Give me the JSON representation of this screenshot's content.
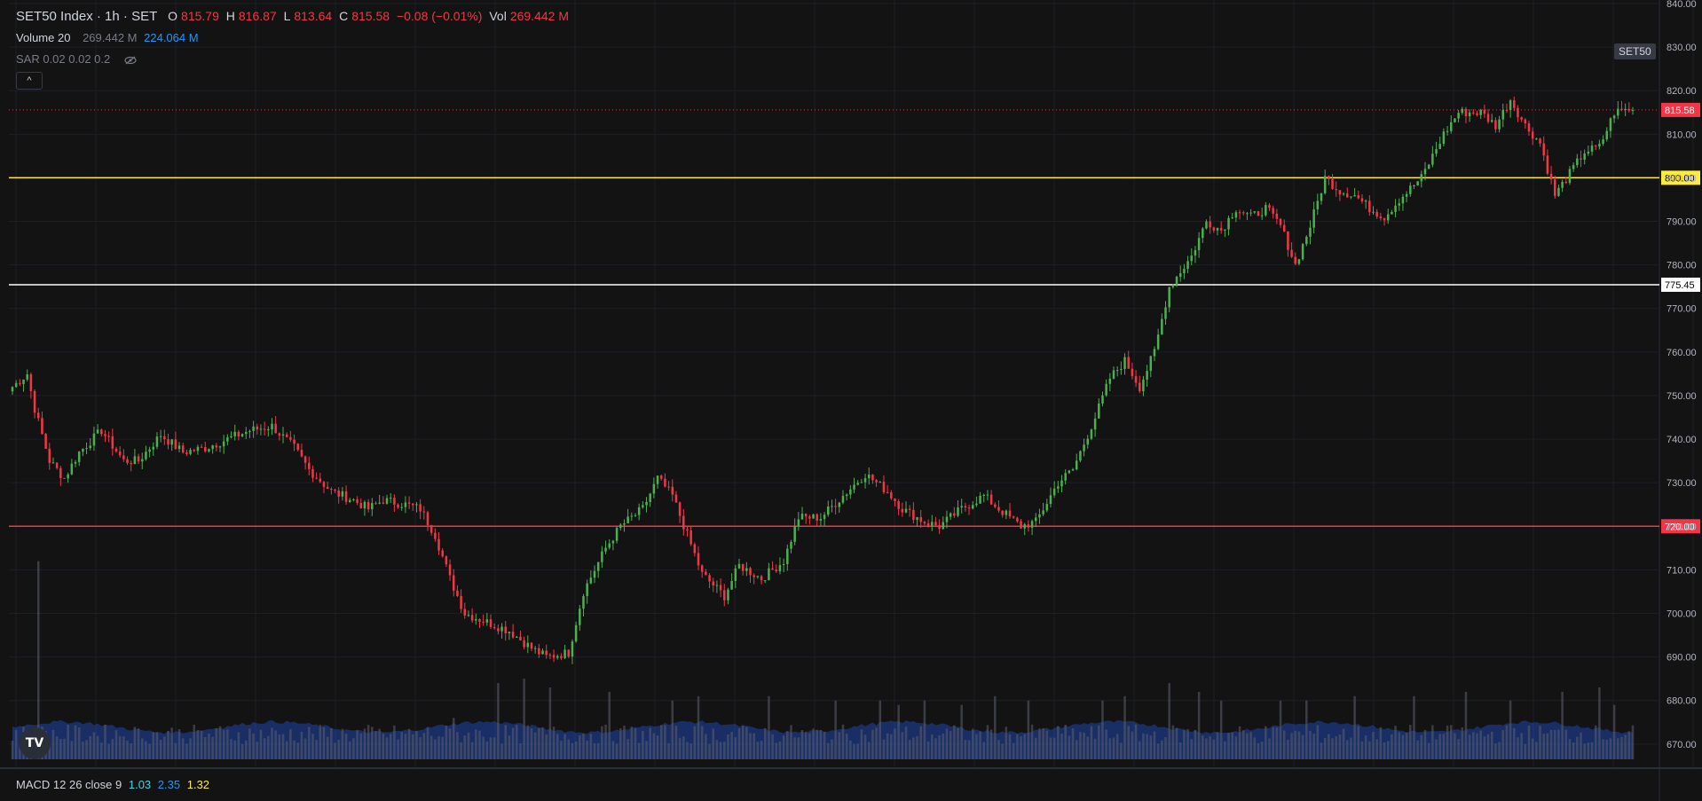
{
  "header": {
    "symbol": "SET50 Index · 1h · SET",
    "open_label": "O",
    "open": "815.79",
    "high_label": "H",
    "high": "816.87",
    "low_label": "L",
    "low": "813.64",
    "close_label": "C",
    "close": "815.58",
    "change": "−0.08 (−0.01%)",
    "vol_label": "Vol",
    "vol": "269.442 M"
  },
  "indicators": {
    "volume_label": "Volume 20",
    "volume_value": "269.442 M",
    "volume_ma": "224.064 M",
    "sar_label": "SAR 0.02 0.02 0.2",
    "eye_icon": "eye-hidden-icon",
    "collapse_icon": "chevron-up-icon",
    "collapse_glyph": "^"
  },
  "macd": {
    "label": "MACD 12 26 close 9",
    "v1": "1.03",
    "v2": "2.35",
    "v3": "1.32"
  },
  "symbol_tag": "SET50",
  "logo_text": "TV",
  "colors": {
    "background": "#131314",
    "up": "#4caf50",
    "down": "#f23645",
    "volume": "#2962ff",
    "line_800": "#ffeb3b",
    "line_720": "#f23645",
    "line_775": "#ffffff"
  },
  "chart_data": {
    "type": "candlestick",
    "y_axis_labels": [
      "840.00",
      "830.00",
      "820.00",
      "810.00",
      "800.00",
      "790.00",
      "780.00",
      "770.00",
      "760.00",
      "750.00",
      "740.00",
      "730.00",
      "720.00",
      "710.00",
      "700.00",
      "690.00",
      "680.00",
      "670.00"
    ],
    "ylim": [
      666.5,
      840
    ],
    "horizontal_lines": [
      {
        "value": 800.0,
        "label": "800.00",
        "color": "#ffeb3b"
      },
      {
        "value": 775.45,
        "label": "775.45",
        "color": "#ffffff"
      },
      {
        "value": 720.0,
        "label": "720.00",
        "color": "#f23645"
      }
    ],
    "last_price": {
      "value": 815.58,
      "label": "815.58"
    },
    "close_waypoints": [
      [
        0,
        752
      ],
      [
        4,
        755
      ],
      [
        6,
        747
      ],
      [
        10,
        735
      ],
      [
        14,
        731
      ],
      [
        18,
        737
      ],
      [
        24,
        742
      ],
      [
        30,
        735
      ],
      [
        34,
        735
      ],
      [
        40,
        741
      ],
      [
        46,
        737
      ],
      [
        52,
        738
      ],
      [
        58,
        740
      ],
      [
        64,
        742
      ],
      [
        70,
        743
      ],
      [
        76,
        738
      ],
      [
        80,
        733
      ],
      [
        86,
        728
      ],
      [
        92,
        726
      ],
      [
        96,
        724
      ],
      [
        100,
        726
      ],
      [
        106,
        725
      ],
      [
        110,
        724
      ],
      [
        114,
        718
      ],
      [
        118,
        708
      ],
      [
        122,
        700
      ],
      [
        128,
        698
      ],
      [
        134,
        696
      ],
      [
        140,
        692
      ],
      [
        144,
        690
      ],
      [
        150,
        691
      ],
      [
        154,
        705
      ],
      [
        160,
        715
      ],
      [
        164,
        720
      ],
      [
        170,
        724
      ],
      [
        174,
        731
      ],
      [
        178,
        727
      ],
      [
        182,
        718
      ],
      [
        186,
        709
      ],
      [
        192,
        704
      ],
      [
        196,
        711
      ],
      [
        202,
        708
      ],
      [
        208,
        712
      ],
      [
        212,
        722
      ],
      [
        218,
        722
      ],
      [
        224,
        727
      ],
      [
        230,
        732
      ],
      [
        236,
        728
      ],
      [
        240,
        724
      ],
      [
        246,
        721
      ],
      [
        250,
        720
      ],
      [
        256,
        724
      ],
      [
        262,
        727
      ],
      [
        266,
        724
      ],
      [
        272,
        720
      ],
      [
        276,
        721
      ],
      [
        282,
        730
      ],
      [
        286,
        733
      ],
      [
        292,
        745
      ],
      [
        296,
        754
      ],
      [
        300,
        758
      ],
      [
        304,
        752
      ],
      [
        308,
        760
      ],
      [
        312,
        775
      ],
      [
        318,
        782
      ],
      [
        322,
        790
      ],
      [
        326,
        788
      ],
      [
        330,
        793
      ],
      [
        334,
        791
      ],
      [
        338,
        793
      ],
      [
        342,
        789
      ],
      [
        346,
        780
      ],
      [
        350,
        789
      ],
      [
        354,
        800
      ],
      [
        358,
        797
      ],
      [
        362,
        796
      ],
      [
        366,
        793
      ],
      [
        370,
        791
      ],
      [
        374,
        795
      ],
      [
        380,
        800
      ],
      [
        386,
        810
      ],
      [
        390,
        815
      ],
      [
        396,
        815
      ],
      [
        400,
        812
      ],
      [
        404,
        818
      ],
      [
        408,
        812
      ],
      [
        412,
        808
      ],
      [
        416,
        796
      ],
      [
        420,
        801
      ],
      [
        424,
        806
      ],
      [
        428,
        807
      ],
      [
        432,
        815
      ],
      [
        437,
        816
      ]
    ],
    "volume_spikes": [
      [
        7,
        712
      ],
      [
        119,
        676
      ],
      [
        131,
        684
      ],
      [
        138,
        685
      ],
      [
        145,
        683
      ],
      [
        161,
        682
      ],
      [
        178,
        680
      ],
      [
        185,
        681
      ],
      [
        204,
        681
      ],
      [
        222,
        680
      ],
      [
        234,
        680
      ],
      [
        239,
        679
      ],
      [
        246,
        680
      ],
      [
        256,
        679
      ],
      [
        265,
        681
      ],
      [
        274,
        680
      ],
      [
        294,
        680
      ],
      [
        300,
        681
      ],
      [
        312,
        684
      ],
      [
        320,
        682
      ],
      [
        326,
        680
      ],
      [
        342,
        680
      ],
      [
        349,
        680
      ],
      [
        362,
        681
      ],
      [
        378,
        681
      ],
      [
        392,
        682
      ],
      [
        404,
        680
      ],
      [
        418,
        682
      ],
      [
        428,
        683
      ],
      [
        432,
        679
      ]
    ]
  }
}
